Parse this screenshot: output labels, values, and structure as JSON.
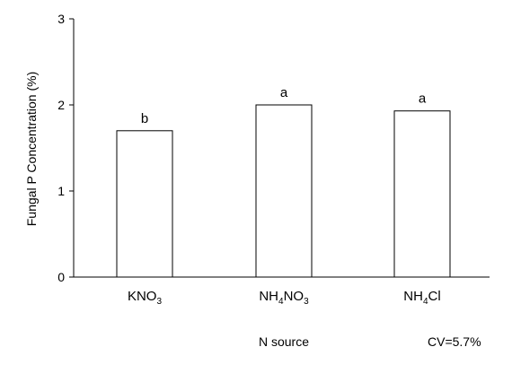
{
  "chart_data": {
    "type": "bar",
    "categories": [
      {
        "main": "KNO",
        "sub": "3",
        "tail": ""
      },
      {
        "main": "NH",
        "sub": "4",
        "tail": "NO",
        "sub2": "3"
      },
      {
        "main": "NH",
        "sub": "4",
        "tail": "Cl",
        "sub2": ""
      }
    ],
    "category_text": [
      "KNO3",
      "NH4NO3",
      "NH4Cl"
    ],
    "values": [
      1.7,
      2.0,
      1.93
    ],
    "bar_labels": [
      "b",
      "a",
      "a"
    ],
    "xlabel": "N source",
    "ylabel": "Fungal P Concentration (%)",
    "ylim": [
      0,
      3
    ],
    "yticks": [
      0,
      1,
      2,
      3
    ],
    "grid": false,
    "annotation": "CV=5.7%",
    "bar_fill": "#ffffff",
    "bar_stroke": "#000000"
  }
}
